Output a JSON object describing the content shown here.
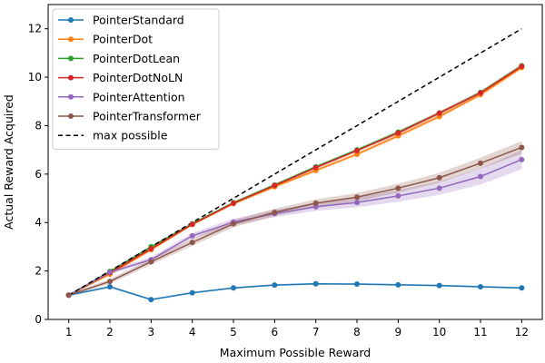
{
  "chart_data": {
    "type": "line",
    "title": "",
    "xlabel": "Maximum Possible Reward",
    "ylabel": "Actual Reward Acquired",
    "xlim": [
      0.5,
      12.5
    ],
    "ylim": [
      0,
      13
    ],
    "x_ticks": [
      1,
      2,
      3,
      4,
      5,
      6,
      7,
      8,
      9,
      10,
      11,
      12
    ],
    "y_ticks": [
      0,
      2,
      4,
      6,
      8,
      10,
      12
    ],
    "x_tick_labels": [
      "1",
      "2",
      "3",
      "4",
      "5",
      "6",
      "7",
      "8",
      "9",
      "10",
      "11",
      "12"
    ],
    "y_tick_labels": [
      "0",
      "2",
      "4",
      "6",
      "8",
      "10",
      "12"
    ],
    "grid": false,
    "legend_position": "top-left",
    "x": [
      1,
      2,
      3,
      4,
      5,
      6,
      7,
      8,
      9,
      10,
      11,
      12
    ],
    "series": [
      {
        "name": "PointerStandard",
        "color": "#1f77b4",
        "marker": "circle",
        "values": [
          1.0,
          1.35,
          0.82,
          1.1,
          1.3,
          1.42,
          1.47,
          1.46,
          1.43,
          1.4,
          1.35,
          1.3
        ],
        "band": [
          0.04,
          0.05,
          0.04,
          0.04,
          0.04,
          0.04,
          0.04,
          0.04,
          0.04,
          0.04,
          0.04,
          0.04
        ]
      },
      {
        "name": "PointerDot",
        "color": "#ff7f0e",
        "marker": "circle",
        "values": [
          1.0,
          1.87,
          2.88,
          3.92,
          4.78,
          5.48,
          6.15,
          6.82,
          7.58,
          8.38,
          9.28,
          10.4
        ],
        "band": [
          0.02,
          0.05,
          0.06,
          0.06,
          0.06,
          0.07,
          0.07,
          0.07,
          0.08,
          0.08,
          0.08,
          0.09
        ]
      },
      {
        "name": "PointerDotLean",
        "color": "#2ca02c",
        "marker": "circle",
        "values": [
          1.0,
          1.98,
          3.0,
          3.95,
          4.82,
          5.55,
          6.3,
          7.0,
          7.73,
          8.52,
          9.37,
          10.47
        ],
        "band": [
          0.02,
          0.04,
          0.05,
          0.05,
          0.05,
          0.06,
          0.06,
          0.06,
          0.07,
          0.07,
          0.07,
          0.08
        ]
      },
      {
        "name": "PointerDotNoLN",
        "color": "#d62728",
        "marker": "circle",
        "values": [
          1.0,
          1.93,
          2.92,
          3.93,
          4.8,
          5.53,
          6.27,
          6.97,
          7.7,
          8.52,
          9.35,
          10.45
        ],
        "band": [
          0.02,
          0.04,
          0.05,
          0.05,
          0.05,
          0.06,
          0.06,
          0.06,
          0.07,
          0.07,
          0.07,
          0.08
        ]
      },
      {
        "name": "PointerAttention",
        "color": "#9467bd",
        "marker": "circle",
        "values": [
          1.0,
          1.95,
          2.47,
          3.45,
          4.02,
          4.37,
          4.65,
          4.83,
          5.1,
          5.42,
          5.9,
          6.6
        ],
        "band": [
          0.03,
          0.08,
          0.1,
          0.12,
          0.14,
          0.15,
          0.17,
          0.2,
          0.24,
          0.28,
          0.33,
          0.4
        ]
      },
      {
        "name": "PointerTransformer",
        "color": "#8c564b",
        "marker": "circle",
        "values": [
          1.0,
          1.57,
          2.38,
          3.18,
          3.95,
          4.42,
          4.8,
          5.05,
          5.42,
          5.85,
          6.45,
          7.1
        ],
        "band": [
          0.03,
          0.1,
          0.12,
          0.14,
          0.15,
          0.15,
          0.16,
          0.17,
          0.18,
          0.2,
          0.23,
          0.26
        ]
      },
      {
        "name": "max possible",
        "color": "#000000",
        "dashed": true,
        "marker": "none",
        "values": [
          1,
          2,
          3,
          4,
          5,
          6,
          7,
          8,
          9,
          10,
          11,
          12
        ]
      }
    ]
  }
}
